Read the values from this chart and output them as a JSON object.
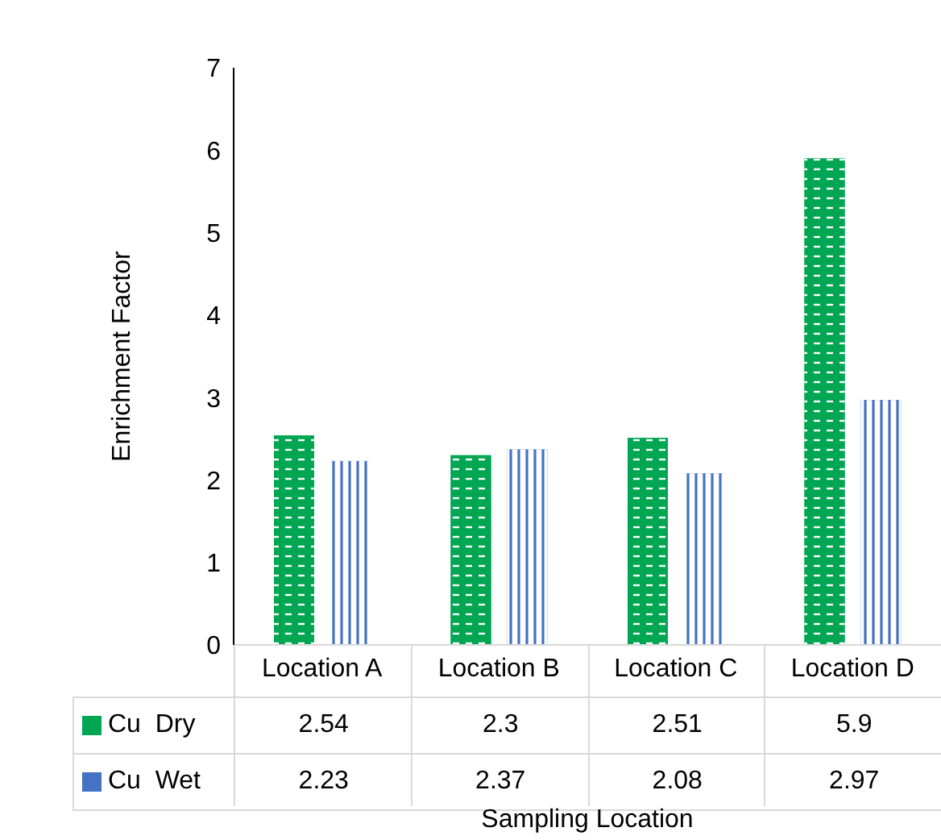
{
  "chart_data": {
    "type": "bar",
    "xlabel": "Sampling Location",
    "ylabel": "Enrichment Factor",
    "categories": [
      "Location A",
      "Location B",
      "Location C",
      "Location D"
    ],
    "series": [
      {
        "name": "Cu  Dry",
        "color": "#00a651",
        "values": [
          2.54,
          2.3,
          2.51,
          5.9
        ]
      },
      {
        "name": "Cu  Wet",
        "color": "#4472c4",
        "values": [
          2.23,
          2.37,
          2.08,
          2.97
        ]
      }
    ],
    "ylim": [
      0,
      7
    ],
    "yticks": [
      0,
      1,
      2,
      3,
      4,
      5,
      6,
      7
    ],
    "grid": false,
    "legend": "bottom",
    "data_labels": true
  }
}
